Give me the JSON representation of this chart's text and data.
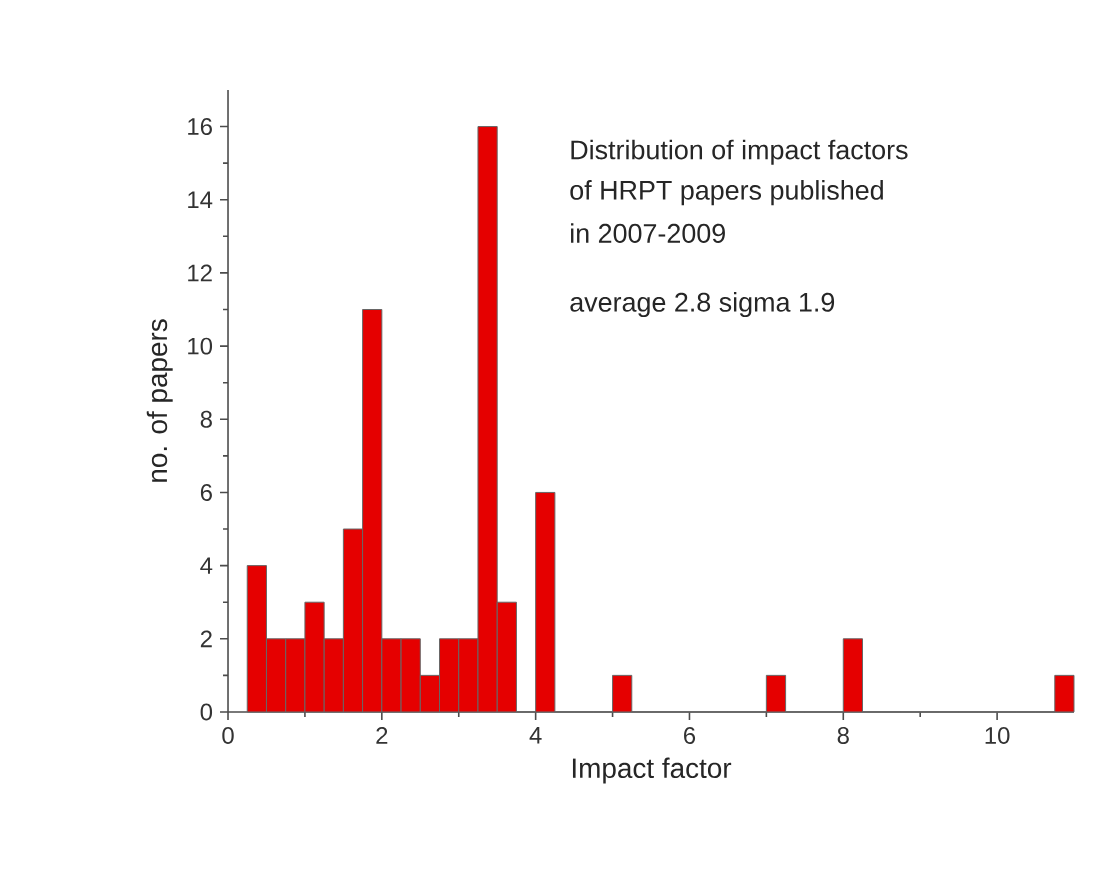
{
  "chart_data": {
    "type": "histogram",
    "xlabel": "Impact factor",
    "ylabel": "no. of papers",
    "annotations": [
      "Distribution of impact factors",
      "of HRPT papers published",
      "in  2007-2009",
      "average 2.8 sigma 1.9"
    ],
    "bins": [
      0.25,
      0.5,
      0.75,
      1,
      1.25,
      1.5,
      1.75,
      2,
      2.25,
      2.5,
      2.75,
      3,
      3.25,
      3.5,
      3.75,
      4,
      4.25,
      4.5,
      4.75,
      5,
      5.25,
      5.5,
      5.75,
      6,
      6.25,
      6.5,
      6.75,
      7,
      7.25,
      7.5,
      7.75,
      8,
      8.25,
      8.5,
      8.75,
      9,
      9.25,
      9.5,
      9.75,
      10,
      10.25,
      10.5,
      10.75,
      11
    ],
    "values": [
      4,
      2,
      2,
      3,
      2,
      5,
      11,
      2,
      2,
      1,
      2,
      2,
      16,
      3,
      0,
      6,
      0,
      0,
      0,
      1,
      0,
      0,
      0,
      0,
      0,
      0,
      0,
      1,
      0,
      0,
      0,
      2,
      0,
      0,
      0,
      0,
      0,
      0,
      0,
      0,
      0,
      0,
      1
    ],
    "color": "#e50000",
    "xlim": [
      0,
      11
    ],
    "ylim": [
      0,
      17
    ],
    "xticks": [
      0,
      2,
      4,
      6,
      8,
      10
    ],
    "yticks": [
      0,
      2,
      4,
      6,
      8,
      10,
      12,
      14,
      16
    ],
    "grid": false
  }
}
